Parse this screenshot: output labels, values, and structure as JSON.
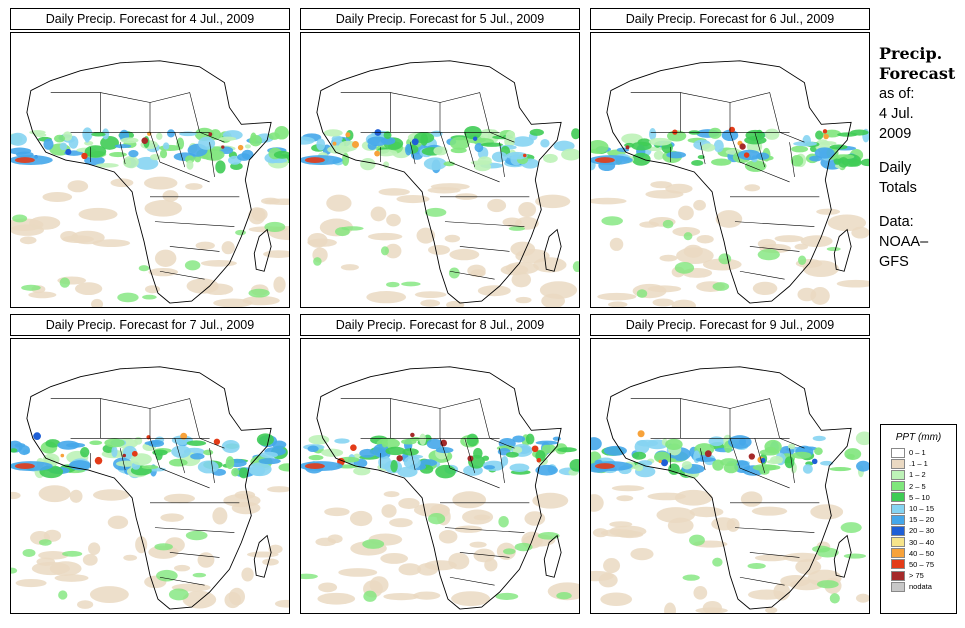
{
  "panels": [
    {
      "title": "Daily Precip. Forecast for  4 Jul., 2009"
    },
    {
      "title": "Daily Precip. Forecast for  5 Jul., 2009"
    },
    {
      "title": "Daily Precip. Forecast for  6 Jul., 2009"
    },
    {
      "title": "Daily Precip. Forecast for  7 Jul., 2009"
    },
    {
      "title": "Daily Precip. Forecast for  8 Jul., 2009"
    },
    {
      "title": "Daily Precip. Forecast for  9 Jul., 2009"
    }
  ],
  "sidebar": {
    "heading_line1": "Precip.",
    "heading_line2": "Forecast",
    "asof_label": "as of:",
    "asof_date": "4 Jul.",
    "asof_year": "2009",
    "totals_line1": "Daily",
    "totals_line2": "Totals",
    "data_line1": "Data:",
    "data_line2": "NOAA–",
    "data_line3": "GFS"
  },
  "legend": {
    "title": "PPT (mm)",
    "items": [
      {
        "label": "0 – 1",
        "color": "#ffffff"
      },
      {
        "label": ".1 – 1",
        "color": "#ead9c2"
      },
      {
        "label": "1 – 2",
        "color": "#bdf2b7"
      },
      {
        "label": "2 – 5",
        "color": "#7fe67c"
      },
      {
        "label": "5 – 10",
        "color": "#3fcc55"
      },
      {
        "label": "10 – 15",
        "color": "#86d4f2"
      },
      {
        "label": "15 – 20",
        "color": "#45a7ea"
      },
      {
        "label": "20 – 30",
        "color": "#1f5fd6"
      },
      {
        "label": "30 – 40",
        "color": "#f7e48a"
      },
      {
        "label": "40 – 50",
        "color": "#f7a23a"
      },
      {
        "label": "50 – 75",
        "color": "#e33b18"
      },
      {
        "label": "> 75",
        "color": "#a52a2a"
      },
      {
        "label": "nodata",
        "color": "#c8c8c8"
      }
    ]
  }
}
